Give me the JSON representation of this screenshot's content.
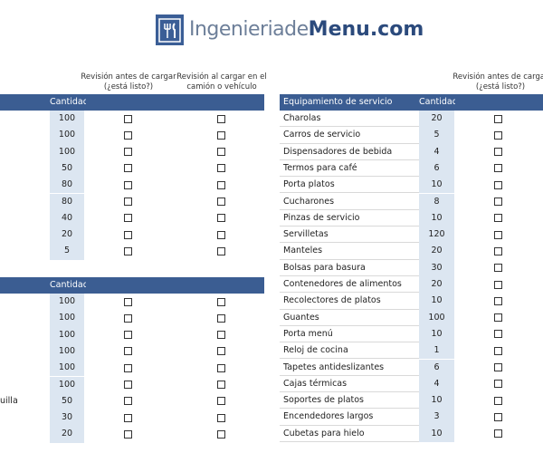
{
  "logo": {
    "text_light": "Ingenieriade",
    "text_bold": "Menu",
    "text_suffix": ".com"
  },
  "left_column_headers": {
    "before": [
      "Revisión antes de cargar",
      "(¿está listo?)"
    ],
    "loading": [
      "Revisión al cargar en el",
      "camión o vehículo"
    ]
  },
  "right_column_headers": {
    "before": [
      "Revisión antes de cargar",
      "(¿está listo?)"
    ]
  },
  "left_tables": [
    {
      "quantity_header": "Cantidad",
      "rows": [
        {
          "quantity": 100
        },
        {
          "quantity": 100
        },
        {
          "quantity": 100
        },
        {
          "quantity": 50
        },
        {
          "quantity": 80
        },
        {
          "quantity": 80
        },
        {
          "quantity": 40
        },
        {
          "quantity": 20
        },
        {
          "quantity": 5
        }
      ]
    },
    {
      "quantity_header": "Cantidad",
      "rows": [
        {
          "quantity": 100
        },
        {
          "quantity": 100
        },
        {
          "quantity": 100
        },
        {
          "quantity": 100
        },
        {
          "quantity": 100
        },
        {
          "quantity": 100
        },
        {
          "label": "uilla",
          "quantity": 50
        },
        {
          "quantity": 30
        },
        {
          "quantity": 20
        }
      ]
    }
  ],
  "right_table": {
    "title": "Equipamiento de servicio",
    "quantity_header": "Cantidad",
    "rows": [
      {
        "label": "Charolas",
        "quantity": 20
      },
      {
        "label": "Carros de servicio",
        "quantity": 5
      },
      {
        "label": "Dispensadores de bebida",
        "quantity": 4
      },
      {
        "label": "Termos para café",
        "quantity": 6
      },
      {
        "label": "Porta platos",
        "quantity": 10
      },
      {
        "label": "Cucharones",
        "quantity": 8
      },
      {
        "label": "Pinzas de servicio",
        "quantity": 10
      },
      {
        "label": "Servilletas",
        "quantity": 120
      },
      {
        "label": "Manteles",
        "quantity": 20
      },
      {
        "label": "Bolsas para basura",
        "quantity": 30
      },
      {
        "label": "Contenedores de alimentos",
        "quantity": 20
      },
      {
        "label": "Recolectores de platos",
        "quantity": 10
      },
      {
        "label": "Guantes",
        "quantity": 100
      },
      {
        "label": "Porta menú",
        "quantity": 10
      },
      {
        "label": "Reloj de cocina",
        "quantity": 1
      },
      {
        "label": "Tapetes antideslizantes",
        "quantity": 6
      },
      {
        "label": "Cajas térmicas",
        "quantity": 4
      },
      {
        "label": "Soportes de platos",
        "quantity": 10
      },
      {
        "label": "Encendedores largos",
        "quantity": 3
      },
      {
        "label": "Cubetas para hielo",
        "quantity": 10
      }
    ]
  }
}
